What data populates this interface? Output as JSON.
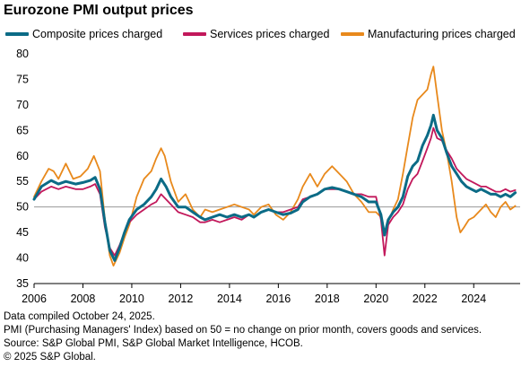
{
  "chart_data": {
    "type": "line",
    "title": "Eurozone PMI output prices",
    "xlabel": "",
    "ylabel": "",
    "xlim": [
      2006,
      2025.9
    ],
    "ylim": [
      35,
      80
    ],
    "reference_line": 50,
    "grid": false,
    "legend_position": "top",
    "x_ticks": [
      "2006",
      "2008",
      "2010",
      "2012",
      "2014",
      "2016",
      "2018",
      "2020",
      "2022",
      "2024"
    ],
    "y_ticks": [
      "35",
      "40",
      "45",
      "50",
      "55",
      "60",
      "65",
      "70",
      "75",
      "80"
    ],
    "series": [
      {
        "name": "Composite prices charged",
        "color": "#0b6b86",
        "points": [
          [
            2006.0,
            51.5
          ],
          [
            2006.3,
            54.0
          ],
          [
            2006.7,
            55.2
          ],
          [
            2007.0,
            54.5
          ],
          [
            2007.3,
            55.0
          ],
          [
            2007.7,
            54.5
          ],
          [
            2008.0,
            54.8
          ],
          [
            2008.3,
            55.2
          ],
          [
            2008.5,
            55.8
          ],
          [
            2008.7,
            53.5
          ],
          [
            2008.9,
            47.0
          ],
          [
            2009.1,
            41.5
          ],
          [
            2009.3,
            39.5
          ],
          [
            2009.5,
            42.0
          ],
          [
            2009.7,
            45.0
          ],
          [
            2009.9,
            47.5
          ],
          [
            2010.2,
            49.5
          ],
          [
            2010.5,
            50.5
          ],
          [
            2010.8,
            52.0
          ],
          [
            2011.0,
            53.5
          ],
          [
            2011.2,
            55.5
          ],
          [
            2011.4,
            54.0
          ],
          [
            2011.6,
            52.0
          ],
          [
            2011.9,
            50.0
          ],
          [
            2012.2,
            50.0
          ],
          [
            2012.5,
            49.0
          ],
          [
            2012.8,
            48.0
          ],
          [
            2013.0,
            47.5
          ],
          [
            2013.3,
            48.0
          ],
          [
            2013.6,
            48.5
          ],
          [
            2013.9,
            48.0
          ],
          [
            2014.2,
            48.5
          ],
          [
            2014.5,
            48.0
          ],
          [
            2014.8,
            48.5
          ],
          [
            2015.0,
            48.0
          ],
          [
            2015.3,
            49.0
          ],
          [
            2015.6,
            49.5
          ],
          [
            2015.9,
            49.0
          ],
          [
            2016.2,
            48.5
          ],
          [
            2016.5,
            48.8
          ],
          [
            2016.8,
            49.5
          ],
          [
            2017.0,
            51.0
          ],
          [
            2017.3,
            52.0
          ],
          [
            2017.6,
            52.5
          ],
          [
            2017.9,
            53.5
          ],
          [
            2018.2,
            53.8
          ],
          [
            2018.5,
            53.5
          ],
          [
            2018.8,
            53.0
          ],
          [
            2019.1,
            52.5
          ],
          [
            2019.4,
            52.0
          ],
          [
            2019.7,
            51.0
          ],
          [
            2020.0,
            51.0
          ],
          [
            2020.2,
            48.5
          ],
          [
            2020.35,
            44.5
          ],
          [
            2020.5,
            47.5
          ],
          [
            2020.7,
            49.0
          ],
          [
            2020.9,
            50.0
          ],
          [
            2021.1,
            52.0
          ],
          [
            2021.3,
            56.0
          ],
          [
            2021.5,
            58.0
          ],
          [
            2021.7,
            59.0
          ],
          [
            2021.9,
            62.0
          ],
          [
            2022.1,
            64.0
          ],
          [
            2022.25,
            66.0
          ],
          [
            2022.35,
            68.0
          ],
          [
            2022.5,
            65.0
          ],
          [
            2022.7,
            63.5
          ],
          [
            2022.9,
            60.5
          ],
          [
            2023.1,
            58.0
          ],
          [
            2023.3,
            56.5
          ],
          [
            2023.5,
            55.0
          ],
          [
            2023.7,
            54.0
          ],
          [
            2023.9,
            53.5
          ],
          [
            2024.1,
            53.0
          ],
          [
            2024.3,
            53.5
          ],
          [
            2024.5,
            53.0
          ],
          [
            2024.7,
            52.5
          ],
          [
            2024.9,
            52.5
          ],
          [
            2025.1,
            52.0
          ],
          [
            2025.3,
            52.5
          ],
          [
            2025.5,
            52.0
          ],
          [
            2025.7,
            52.8
          ]
        ]
      },
      {
        "name": "Services prices charged",
        "color": "#c2185b",
        "points": [
          [
            2006.0,
            51.5
          ],
          [
            2006.3,
            53.0
          ],
          [
            2006.7,
            54.0
          ],
          [
            2007.0,
            53.5
          ],
          [
            2007.3,
            54.0
          ],
          [
            2007.7,
            53.5
          ],
          [
            2008.0,
            53.5
          ],
          [
            2008.3,
            54.0
          ],
          [
            2008.5,
            54.5
          ],
          [
            2008.7,
            52.5
          ],
          [
            2008.9,
            46.0
          ],
          [
            2009.1,
            42.0
          ],
          [
            2009.3,
            40.5
          ],
          [
            2009.5,
            42.5
          ],
          [
            2009.7,
            45.0
          ],
          [
            2009.9,
            47.0
          ],
          [
            2010.2,
            48.5
          ],
          [
            2010.5,
            49.5
          ],
          [
            2010.8,
            50.5
          ],
          [
            2011.0,
            51.0
          ],
          [
            2011.2,
            52.5
          ],
          [
            2011.4,
            51.5
          ],
          [
            2011.6,
            50.5
          ],
          [
            2011.9,
            49.0
          ],
          [
            2012.2,
            48.5
          ],
          [
            2012.5,
            48.0
          ],
          [
            2012.8,
            47.0
          ],
          [
            2013.0,
            47.0
          ],
          [
            2013.3,
            47.5
          ],
          [
            2013.6,
            47.0
          ],
          [
            2013.9,
            47.5
          ],
          [
            2014.2,
            48.0
          ],
          [
            2014.5,
            47.5
          ],
          [
            2014.8,
            48.5
          ],
          [
            2015.0,
            48.0
          ],
          [
            2015.3,
            49.0
          ],
          [
            2015.6,
            49.5
          ],
          [
            2015.9,
            49.0
          ],
          [
            2016.2,
            49.0
          ],
          [
            2016.5,
            49.5
          ],
          [
            2016.8,
            50.0
          ],
          [
            2017.0,
            51.5
          ],
          [
            2017.3,
            52.0
          ],
          [
            2017.6,
            52.5
          ],
          [
            2017.9,
            53.5
          ],
          [
            2018.2,
            53.5
          ],
          [
            2018.5,
            53.5
          ],
          [
            2018.8,
            53.0
          ],
          [
            2019.1,
            52.5
          ],
          [
            2019.4,
            52.5
          ],
          [
            2019.7,
            52.0
          ],
          [
            2020.0,
            52.0
          ],
          [
            2020.2,
            47.5
          ],
          [
            2020.35,
            40.5
          ],
          [
            2020.5,
            46.5
          ],
          [
            2020.7,
            48.0
          ],
          [
            2020.9,
            49.0
          ],
          [
            2021.1,
            50.5
          ],
          [
            2021.3,
            53.5
          ],
          [
            2021.5,
            55.5
          ],
          [
            2021.7,
            56.5
          ],
          [
            2021.9,
            59.0
          ],
          [
            2022.1,
            61.5
          ],
          [
            2022.25,
            63.5
          ],
          [
            2022.35,
            65.5
          ],
          [
            2022.5,
            63.5
          ],
          [
            2022.7,
            63.0
          ],
          [
            2022.9,
            61.0
          ],
          [
            2023.1,
            59.5
          ],
          [
            2023.3,
            57.5
          ],
          [
            2023.5,
            56.5
          ],
          [
            2023.7,
            55.5
          ],
          [
            2023.9,
            55.0
          ],
          [
            2024.1,
            54.5
          ],
          [
            2024.3,
            54.0
          ],
          [
            2024.5,
            54.0
          ],
          [
            2024.7,
            53.5
          ],
          [
            2024.9,
            53.0
          ],
          [
            2025.1,
            53.0
          ],
          [
            2025.3,
            53.5
          ],
          [
            2025.5,
            53.0
          ],
          [
            2025.7,
            53.3
          ]
        ]
      },
      {
        "name": "Manufacturing prices charged",
        "color": "#e8891c",
        "points": [
          [
            2006.0,
            52.0
          ],
          [
            2006.3,
            55.0
          ],
          [
            2006.6,
            57.5
          ],
          [
            2006.8,
            57.0
          ],
          [
            2007.0,
            55.5
          ],
          [
            2007.3,
            58.5
          ],
          [
            2007.6,
            55.5
          ],
          [
            2007.9,
            56.0
          ],
          [
            2008.2,
            57.5
          ],
          [
            2008.45,
            60.0
          ],
          [
            2008.7,
            57.0
          ],
          [
            2008.9,
            47.5
          ],
          [
            2009.1,
            40.5
          ],
          [
            2009.25,
            38.5
          ],
          [
            2009.5,
            41.0
          ],
          [
            2009.7,
            44.0
          ],
          [
            2009.9,
            46.5
          ],
          [
            2010.2,
            52.0
          ],
          [
            2010.5,
            55.5
          ],
          [
            2010.8,
            57.0
          ],
          [
            2011.0,
            59.5
          ],
          [
            2011.2,
            61.5
          ],
          [
            2011.35,
            60.0
          ],
          [
            2011.6,
            55.0
          ],
          [
            2011.9,
            51.0
          ],
          [
            2012.2,
            52.5
          ],
          [
            2012.5,
            49.5
          ],
          [
            2012.8,
            48.0
          ],
          [
            2013.0,
            49.5
          ],
          [
            2013.3,
            49.0
          ],
          [
            2013.6,
            49.5
          ],
          [
            2013.9,
            50.0
          ],
          [
            2014.2,
            50.5
          ],
          [
            2014.5,
            50.0
          ],
          [
            2014.8,
            49.5
          ],
          [
            2015.0,
            48.5
          ],
          [
            2015.3,
            50.0
          ],
          [
            2015.6,
            50.5
          ],
          [
            2015.9,
            48.5
          ],
          [
            2016.2,
            47.5
          ],
          [
            2016.5,
            49.0
          ],
          [
            2016.8,
            51.5
          ],
          [
            2017.0,
            54.0
          ],
          [
            2017.3,
            56.5
          ],
          [
            2017.6,
            54.0
          ],
          [
            2017.9,
            56.5
          ],
          [
            2018.2,
            58.0
          ],
          [
            2018.5,
            56.5
          ],
          [
            2018.8,
            55.0
          ],
          [
            2019.1,
            52.5
          ],
          [
            2019.4,
            51.0
          ],
          [
            2019.7,
            49.0
          ],
          [
            2020.0,
            49.0
          ],
          [
            2020.2,
            48.0
          ],
          [
            2020.35,
            45.0
          ],
          [
            2020.5,
            47.0
          ],
          [
            2020.7,
            49.5
          ],
          [
            2020.9,
            51.5
          ],
          [
            2021.1,
            56.5
          ],
          [
            2021.3,
            62.0
          ],
          [
            2021.5,
            67.5
          ],
          [
            2021.7,
            71.0
          ],
          [
            2021.9,
            72.0
          ],
          [
            2022.1,
            73.0
          ],
          [
            2022.25,
            76.0
          ],
          [
            2022.35,
            77.5
          ],
          [
            2022.5,
            72.0
          ],
          [
            2022.7,
            65.0
          ],
          [
            2022.9,
            60.5
          ],
          [
            2023.1,
            55.0
          ],
          [
            2023.3,
            48.0
          ],
          [
            2023.45,
            45.0
          ],
          [
            2023.6,
            46.0
          ],
          [
            2023.8,
            47.5
          ],
          [
            2024.0,
            48.0
          ],
          [
            2024.3,
            49.5
          ],
          [
            2024.5,
            50.5
          ],
          [
            2024.7,
            49.0
          ],
          [
            2024.9,
            48.0
          ],
          [
            2025.1,
            50.0
          ],
          [
            2025.3,
            51.0
          ],
          [
            2025.5,
            49.5
          ],
          [
            2025.7,
            50.2
          ]
        ]
      }
    ]
  },
  "footnotes": [
    "Data compiled October 24, 2025.",
    "PMI (Purchasing Managers' Index) based on 50 = no change on prior month, covers goods and services.",
    "Source: S&P Global PMI, S&P Global Market Intelligence, HCOB.",
    "© 2025 S&P Global."
  ]
}
